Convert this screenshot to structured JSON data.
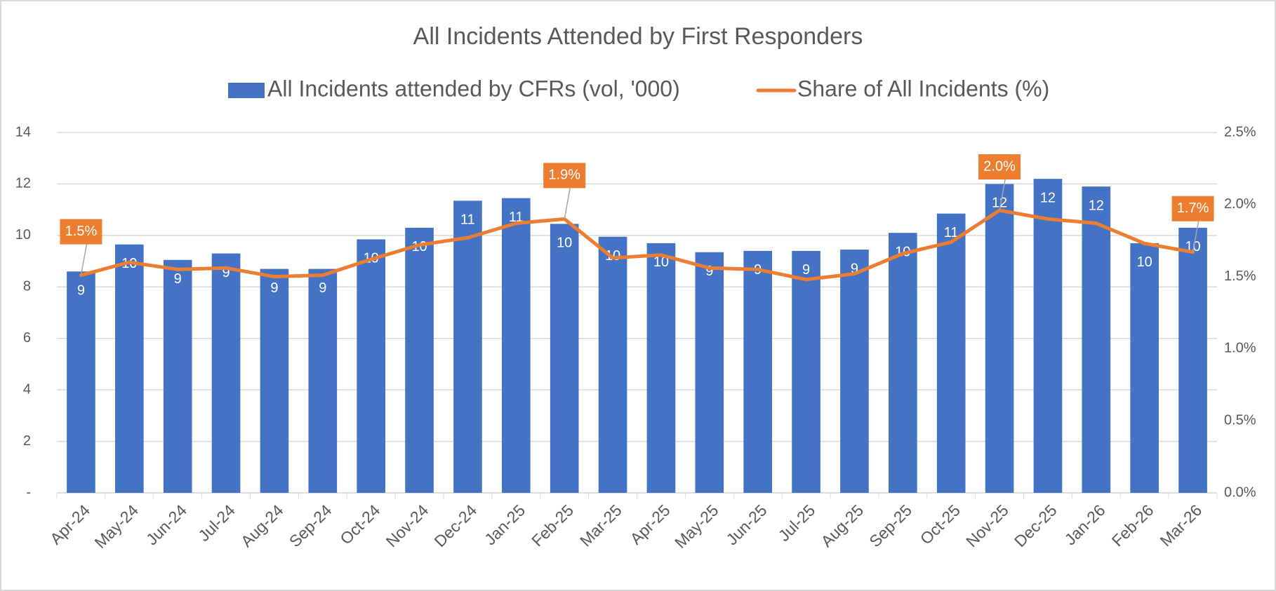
{
  "chart_data": {
    "type": "bar-line",
    "title": "All Incidents Attended by First Responders",
    "categories": [
      "Apr-24",
      "May-24",
      "Jun-24",
      "Jul-24",
      "Aug-24",
      "Sep-24",
      "Oct-24",
      "Nov-24",
      "Dec-24",
      "Jan-25",
      "Feb-25",
      "Mar-25",
      "Apr-25",
      "May-25",
      "Jun-25",
      "Jul-25",
      "Aug-25",
      "Sep-25",
      "Oct-25",
      "Nov-25",
      "Dec-25",
      "Jan-26",
      "Feb-26",
      "Mar-26"
    ],
    "series": [
      {
        "name": "All Incidents attended by CFRs (vol, '000)",
        "type": "bar",
        "color": "#4472c4",
        "values": [
          8.6,
          9.65,
          9.05,
          9.3,
          8.7,
          8.7,
          9.85,
          10.3,
          11.35,
          11.45,
          10.45,
          9.95,
          9.7,
          9.35,
          9.4,
          9.4,
          9.45,
          10.1,
          10.85,
          12.0,
          12.2,
          11.9,
          9.7,
          10.3
        ],
        "value_labels": [
          "9",
          "10",
          "9",
          "9",
          "9",
          "9",
          "10",
          "10",
          "11",
          "11",
          "10",
          "10",
          "10",
          "9",
          "9",
          "9",
          "9",
          "10",
          "11",
          "12",
          "12",
          "12",
          "10",
          "10"
        ]
      },
      {
        "name": "Share of All Incidents (%)",
        "type": "line",
        "axis": "y2",
        "color": "#ed7d31",
        "values": [
          1.51,
          1.6,
          1.55,
          1.56,
          1.5,
          1.51,
          1.62,
          1.72,
          1.77,
          1.87,
          1.9,
          1.63,
          1.65,
          1.56,
          1.55,
          1.48,
          1.52,
          1.66,
          1.74,
          1.96,
          1.9,
          1.87,
          1.73,
          1.67
        ],
        "value_labels": [
          "1.5%",
          null,
          null,
          null,
          null,
          null,
          null,
          null,
          null,
          null,
          "1.9%",
          null,
          null,
          null,
          null,
          null,
          null,
          null,
          null,
          "2.0%",
          null,
          null,
          null,
          "1.7%"
        ]
      }
    ],
    "ylim": [
      0,
      14
    ],
    "yticks": [
      {
        "value": 0,
        "label": "-"
      },
      2,
      4,
      6,
      8,
      10,
      12,
      14
    ],
    "y2lim": [
      0,
      2.5
    ],
    "y2ticks": [
      {
        "value": 0,
        "label": "0.0%"
      },
      {
        "value": 0.5,
        "label": "0.5%"
      },
      {
        "value": 1,
        "label": "1.0%"
      },
      {
        "value": 1.5,
        "label": "1.5%"
      },
      {
        "value": 2,
        "label": "2.0%"
      },
      {
        "value": 2.5,
        "label": "2.5%"
      }
    ],
    "grid": true,
    "legend": "top"
  }
}
